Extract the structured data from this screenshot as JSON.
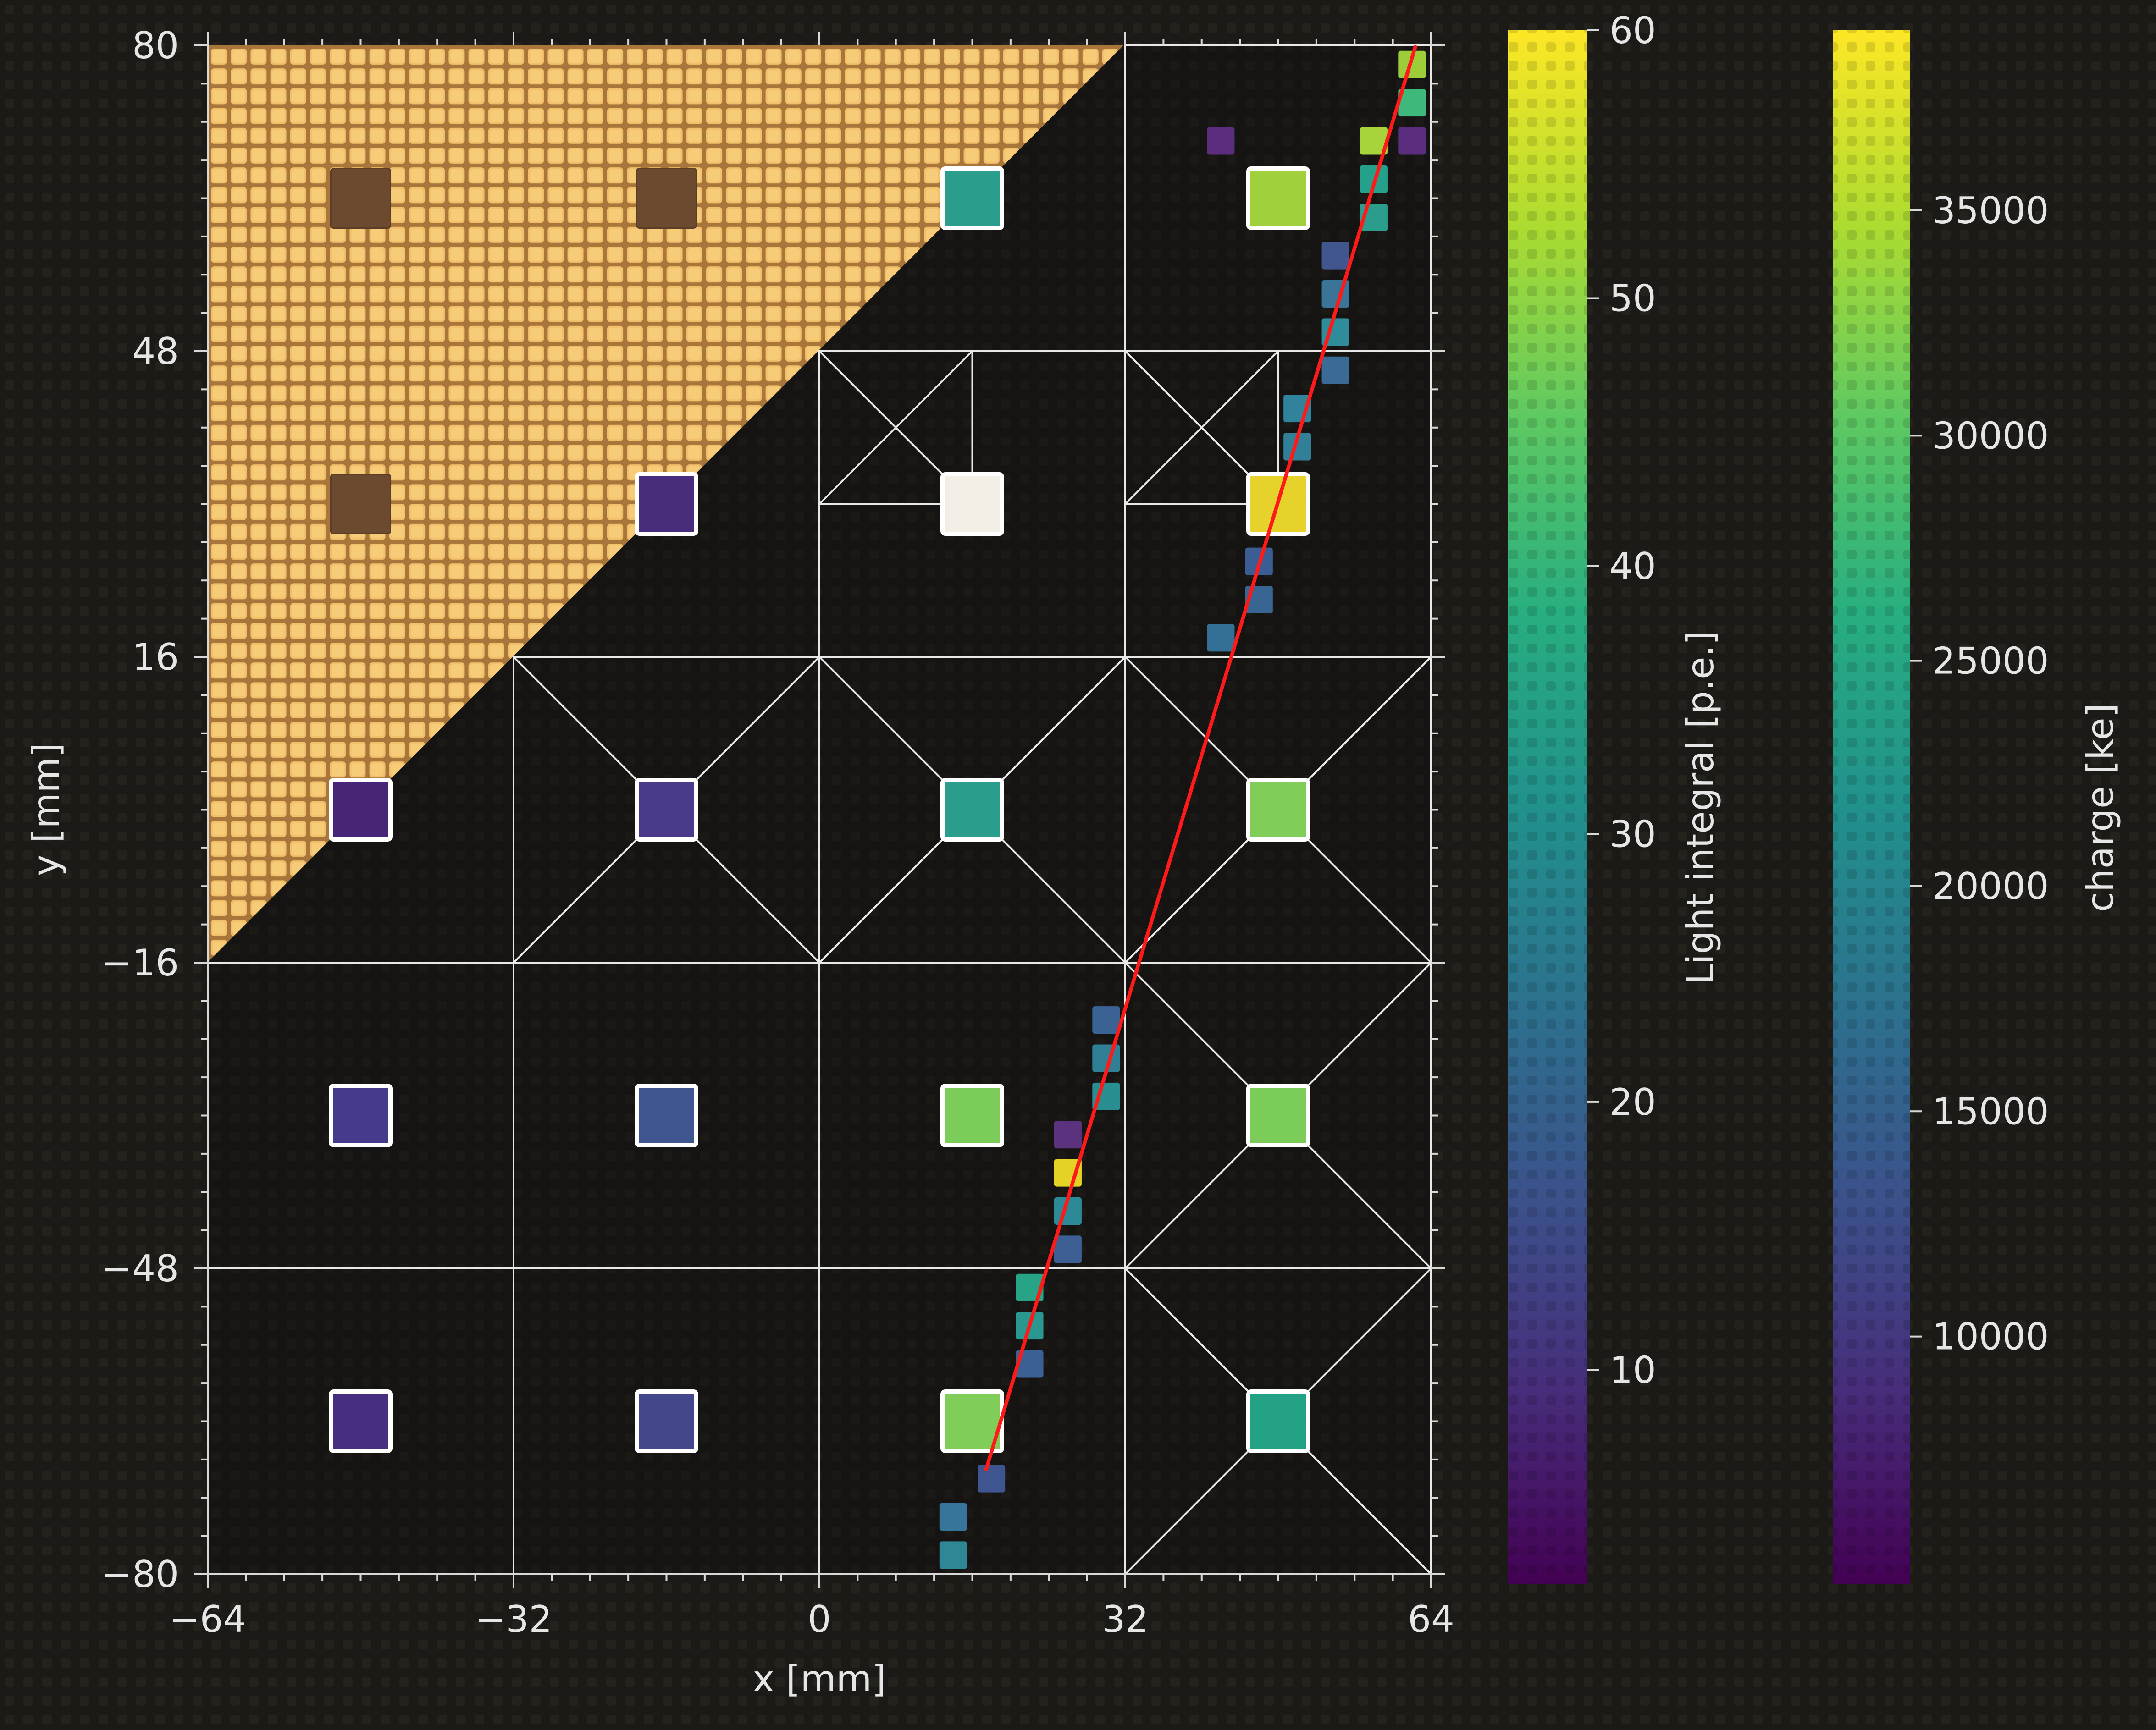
{
  "chart_data": [
    {
      "type": "scatter",
      "title": "",
      "xlabel": "x [mm]",
      "ylabel": "y [mm]",
      "xlim": [
        -64,
        64
      ],
      "ylim": [
        -80,
        80
      ],
      "x_ticks": [
        "−64",
        "−32",
        "0",
        "32",
        "64"
      ],
      "y_ticks": [
        "80",
        "48",
        "16",
        "−16",
        "−48",
        "−80"
      ],
      "grid": true,
      "background": "dark perforated board; upper-left triangle shows gold photosensor tiles",
      "light_detectors": [
        {
          "x": -48,
          "y": 64,
          "light": null,
          "color": "#6b4a30"
        },
        {
          "x": -16,
          "y": 64,
          "light": null,
          "color": "#6b4a30"
        },
        {
          "x": 16,
          "y": 64,
          "light": 38,
          "color": "#2a9d8c"
        },
        {
          "x": 48,
          "y": 64,
          "light": 50,
          "color": "#a0d03c"
        },
        {
          "x": -48,
          "y": 32,
          "light": null,
          "color": "#6b4a30"
        },
        {
          "x": -16,
          "y": 32,
          "light": 12,
          "color": "#472d7b"
        },
        {
          "x": 16,
          "y": 32,
          "light": null,
          "color": "#f4efe6"
        },
        {
          "x": 48,
          "y": 32,
          "light": 60,
          "color": "#e6d22a"
        },
        {
          "x": -48,
          "y": 0,
          "light": 7,
          "color": "#482576"
        },
        {
          "x": -16,
          "y": 0,
          "light": 14,
          "color": "#4b3a8a"
        },
        {
          "x": 16,
          "y": 0,
          "light": 39,
          "color": "#2a9d8c"
        },
        {
          "x": 48,
          "y": 0,
          "light": 47,
          "color": "#80cd5a"
        },
        {
          "x": -48,
          "y": -32,
          "light": 14,
          "color": "#463a8c"
        },
        {
          "x": -16,
          "y": -32,
          "light": 20,
          "color": "#3e5590"
        },
        {
          "x": 16,
          "y": -32,
          "light": 47,
          "color": "#7ccc5a"
        },
        {
          "x": 48,
          "y": -32,
          "light": 47,
          "color": "#7ccc5a"
        },
        {
          "x": -48,
          "y": -64,
          "light": 13,
          "color": "#482e80"
        },
        {
          "x": -16,
          "y": -64,
          "light": 17,
          "color": "#44478a"
        },
        {
          "x": 16,
          "y": -64,
          "light": 47,
          "color": "#80cd5a"
        },
        {
          "x": 48,
          "y": -64,
          "light": 37,
          "color": "#22a184"
        }
      ],
      "charge_hits": [
        {
          "x": 62,
          "y": 78,
          "charge": 35000,
          "color": "#9ecd3a"
        },
        {
          "x": 62,
          "y": 74,
          "charge": 31000,
          "color": "#3fb87c"
        },
        {
          "x": 62,
          "y": 70,
          "charge": 8000,
          "color": "#5a2d7e"
        },
        {
          "x": 58,
          "y": 70,
          "charge": 35000,
          "color": "#a8d33a"
        },
        {
          "x": 42,
          "y": 70,
          "charge": 8000,
          "color": "#5a2d7e"
        },
        {
          "x": 58,
          "y": 66,
          "charge": 26000,
          "color": "#25a08a"
        },
        {
          "x": 58,
          "y": 62,
          "charge": 27000,
          "color": "#2a9d8c"
        },
        {
          "x": 54,
          "y": 58,
          "charge": 15000,
          "color": "#40568c"
        },
        {
          "x": 54,
          "y": 54,
          "charge": 20000,
          "color": "#3a7598"
        },
        {
          "x": 54,
          "y": 50,
          "charge": 23000,
          "color": "#2f8c9a"
        },
        {
          "x": 54,
          "y": 46,
          "charge": 19000,
          "color": "#3b6a96"
        },
        {
          "x": 50,
          "y": 42,
          "charge": 22000,
          "color": "#31839b"
        },
        {
          "x": 50,
          "y": 38,
          "charge": 22000,
          "color": "#327f98"
        },
        {
          "x": 46,
          "y": 26,
          "charge": 17000,
          "color": "#3a5e94"
        },
        {
          "x": 46,
          "y": 22,
          "charge": 18000,
          "color": "#396592"
        },
        {
          "x": 42,
          "y": 18,
          "charge": 20000,
          "color": "#346f96"
        },
        {
          "x": 30,
          "y": -22,
          "charge": 17000,
          "color": "#3a6292"
        },
        {
          "x": 30,
          "y": -26,
          "charge": 22000,
          "color": "#2f8094"
        },
        {
          "x": 30,
          "y": -30,
          "charge": 24000,
          "color": "#298e8f"
        },
        {
          "x": 26,
          "y": -34,
          "charge": 9000,
          "color": "#5a327d"
        },
        {
          "x": 26,
          "y": -38,
          "charge": 37000,
          "color": "#e4d224"
        },
        {
          "x": 26,
          "y": -42,
          "charge": 23000,
          "color": "#2b8a95"
        },
        {
          "x": 26,
          "y": -46,
          "charge": 16000,
          "color": "#3d5f94"
        },
        {
          "x": 22,
          "y": -50,
          "charge": 27000,
          "color": "#26a485"
        },
        {
          "x": 22,
          "y": -54,
          "charge": 25000,
          "color": "#2a9790"
        },
        {
          "x": 22,
          "y": -58,
          "charge": 16000,
          "color": "#3b6194"
        },
        {
          "x": 18,
          "y": -70,
          "charge": 14000,
          "color": "#3e5590"
        },
        {
          "x": 14,
          "y": -74,
          "charge": 20000,
          "color": "#38759a"
        },
        {
          "x": 14,
          "y": -78,
          "charge": 23000,
          "color": "#2f8796"
        }
      ],
      "track_line": {
        "x": [
          17.4,
          62.4
        ],
        "y": [
          -69.2,
          80
        ],
        "color": "#ff1a1a"
      },
      "colorbars": [
        {
          "label": "Light integral [p.e.]",
          "range": [
            2,
            60
          ],
          "ticks": [
            "10",
            "20",
            "30",
            "40",
            "50",
            "60"
          ],
          "tick_values": [
            10,
            20,
            30,
            40,
            50,
            60
          ],
          "colormap": "viridis"
        },
        {
          "label": "charge [ke]",
          "range": [
            4500,
            39000
          ],
          "ticks": [
            "10000",
            "15000",
            "20000",
            "25000",
            "30000",
            "35000"
          ],
          "tick_values": [
            10000,
            15000,
            20000,
            25000,
            30000,
            35000
          ],
          "colormap": "viridis"
        }
      ]
    }
  ]
}
